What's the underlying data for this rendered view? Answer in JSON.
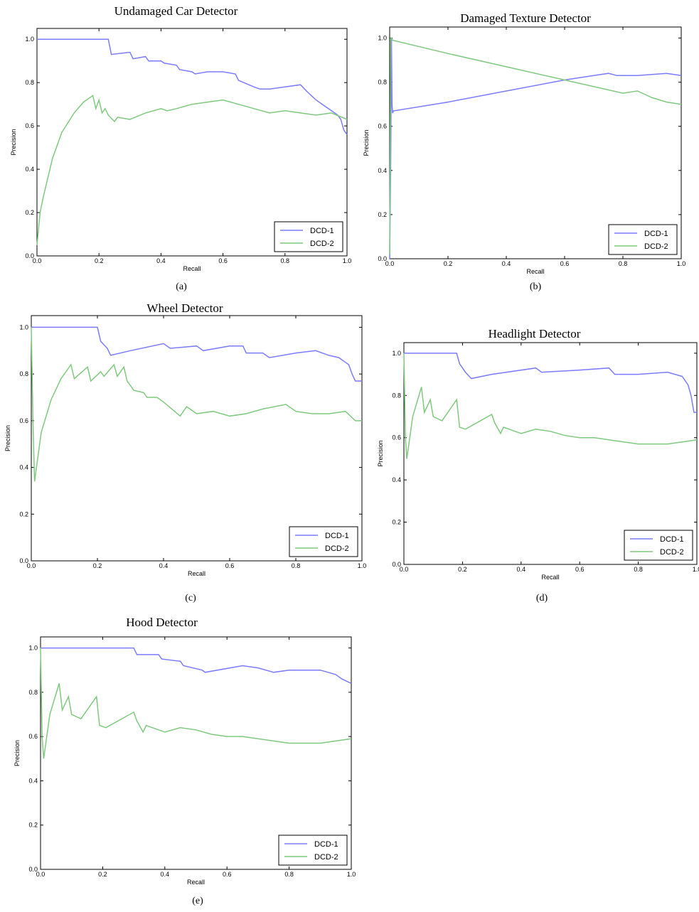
{
  "figures": [
    {
      "title": "Undamaged Car Detector",
      "caption": "(a)"
    },
    {
      "title": "Damaged Texture Detector",
      "caption": "(b)"
    },
    {
      "title": "Wheel Detector",
      "caption": "(c)"
    },
    {
      "title": "Headlight Detector",
      "caption": "(d)"
    },
    {
      "title": "Hood Detector",
      "caption": "(e)"
    }
  ],
  "colors": {
    "DCD-1": "#7b7bff",
    "DCD-2": "#7fc97f",
    "axes": "#000000"
  },
  "chart_data": [
    {
      "type": "line",
      "title": "Undamaged Car Detector",
      "xlabel": "Recall",
      "ylabel": "Precision",
      "xlim": [
        0,
        1
      ],
      "ylim": [
        0,
        1.05
      ],
      "xticks": [
        "0.0",
        "0.2",
        "0.4",
        "0.6",
        "0.8",
        "1.0"
      ],
      "yticks": [
        "0.0",
        "0.2",
        "0.4",
        "0.6",
        "0.8",
        "1.0"
      ],
      "legend": "lower-right",
      "series": [
        {
          "name": "DCD-1",
          "color": "#7b7bff",
          "x": [
            0,
            0.23,
            0.24,
            0.3,
            0.31,
            0.35,
            0.36,
            0.4,
            0.41,
            0.45,
            0.46,
            0.5,
            0.51,
            0.55,
            0.6,
            0.64,
            0.65,
            0.7,
            0.72,
            0.75,
            0.8,
            0.85,
            0.87,
            0.9,
            0.92,
            0.95,
            0.97,
            0.98,
            0.99,
            1.0
          ],
          "y": [
            1.0,
            1.0,
            0.93,
            0.94,
            0.91,
            0.92,
            0.9,
            0.9,
            0.89,
            0.88,
            0.86,
            0.85,
            0.84,
            0.85,
            0.85,
            0.84,
            0.81,
            0.78,
            0.77,
            0.77,
            0.78,
            0.79,
            0.76,
            0.72,
            0.7,
            0.67,
            0.65,
            0.63,
            0.58,
            0.56
          ]
        },
        {
          "name": "DCD-2",
          "color": "#7fc97f",
          "x": [
            0,
            0.01,
            0.02,
            0.03,
            0.05,
            0.08,
            0.12,
            0.15,
            0.18,
            0.19,
            0.2,
            0.21,
            0.22,
            0.23,
            0.25,
            0.26,
            0.3,
            0.35,
            0.4,
            0.42,
            0.45,
            0.5,
            0.55,
            0.6,
            0.65,
            0.7,
            0.75,
            0.8,
            0.85,
            0.9,
            0.95,
            1.0
          ],
          "y": [
            0.05,
            0.2,
            0.27,
            0.33,
            0.45,
            0.57,
            0.66,
            0.71,
            0.74,
            0.68,
            0.72,
            0.66,
            0.68,
            0.65,
            0.62,
            0.64,
            0.63,
            0.66,
            0.68,
            0.67,
            0.68,
            0.7,
            0.71,
            0.72,
            0.7,
            0.68,
            0.66,
            0.67,
            0.66,
            0.65,
            0.66,
            0.63
          ]
        }
      ]
    },
    {
      "type": "line",
      "title": "Damaged Texture Detector",
      "xlabel": "Recall",
      "ylabel": "Precision",
      "xlim": [
        0,
        1
      ],
      "ylim": [
        0,
        1.05
      ],
      "xticks": [
        "0.0",
        "0.2",
        "0.4",
        "0.6",
        "0.8",
        "1.0"
      ],
      "yticks": [
        "0.0",
        "0.2",
        "0.4",
        "0.6",
        "0.8",
        "1.0"
      ],
      "legend": "lower-right",
      "series": [
        {
          "name": "DCD-1",
          "color": "#7b7bff",
          "x": [
            0,
            0.004,
            0.006,
            0.008,
            0.01,
            0.013,
            0.2,
            0.4,
            0.6,
            0.7,
            0.75,
            0.78,
            0.85,
            0.95,
            1.0
          ],
          "y": [
            0.0,
            0.5,
            1.0,
            0.7,
            0.66,
            0.67,
            0.71,
            0.76,
            0.81,
            0.83,
            0.84,
            0.83,
            0.83,
            0.84,
            0.83
          ]
        },
        {
          "name": "DCD-2",
          "color": "#7fc97f",
          "x": [
            0,
            0.004,
            0.006,
            0.01,
            0.2,
            0.4,
            0.6,
            0.8,
            0.85,
            0.9,
            0.95,
            1.0
          ],
          "y": [
            0.02,
            1.0,
            1.0,
            0.99,
            0.93,
            0.87,
            0.81,
            0.75,
            0.76,
            0.73,
            0.71,
            0.7
          ]
        }
      ]
    },
    {
      "type": "line",
      "title": "Wheel Detector",
      "xlabel": "Recall",
      "ylabel": "Precision",
      "xlim": [
        0,
        1
      ],
      "ylim": [
        0,
        1.05
      ],
      "xticks": [
        "0.0",
        "0.2",
        "0.4",
        "0.6",
        "0.8",
        "1.0"
      ],
      "yticks": [
        "0.0",
        "0.2",
        "0.4",
        "0.6",
        "0.8",
        "1.0"
      ],
      "legend": "lower-right",
      "series": [
        {
          "name": "DCD-1",
          "color": "#7b7bff",
          "x": [
            0,
            0.2,
            0.21,
            0.23,
            0.24,
            0.3,
            0.4,
            0.42,
            0.5,
            0.52,
            0.6,
            0.64,
            0.65,
            0.7,
            0.72,
            0.8,
            0.86,
            0.9,
            0.93,
            0.95,
            0.96,
            0.97,
            0.98,
            1.0
          ],
          "y": [
            1.0,
            1.0,
            0.94,
            0.91,
            0.88,
            0.9,
            0.93,
            0.91,
            0.92,
            0.9,
            0.92,
            0.92,
            0.89,
            0.89,
            0.87,
            0.89,
            0.9,
            0.88,
            0.87,
            0.85,
            0.84,
            0.8,
            0.77,
            0.77
          ]
        },
        {
          "name": "DCD-2",
          "color": "#7fc97f",
          "x": [
            0,
            0.005,
            0.01,
            0.03,
            0.06,
            0.09,
            0.12,
            0.13,
            0.17,
            0.18,
            0.21,
            0.22,
            0.25,
            0.26,
            0.28,
            0.29,
            0.31,
            0.34,
            0.35,
            0.38,
            0.4,
            0.45,
            0.47,
            0.5,
            0.55,
            0.6,
            0.65,
            0.7,
            0.77,
            0.8,
            0.85,
            0.9,
            0.95,
            0.98,
            1.0
          ],
          "y": [
            1.0,
            0.6,
            0.34,
            0.55,
            0.69,
            0.78,
            0.84,
            0.78,
            0.83,
            0.77,
            0.81,
            0.79,
            0.84,
            0.79,
            0.83,
            0.77,
            0.73,
            0.72,
            0.7,
            0.7,
            0.68,
            0.62,
            0.66,
            0.63,
            0.64,
            0.62,
            0.63,
            0.65,
            0.67,
            0.64,
            0.63,
            0.63,
            0.64,
            0.6,
            0.6
          ]
        }
      ]
    },
    {
      "type": "line",
      "title": "Headlight Detector",
      "xlabel": "Recall",
      "ylabel": "Precision",
      "xlim": [
        0,
        1
      ],
      "ylim": [
        0,
        1.05
      ],
      "xticks": [
        "0.0",
        "0.2",
        "0.4",
        "0.6",
        "0.8",
        "1.0"
      ],
      "yticks": [
        "0.0",
        "0.2",
        "0.4",
        "0.6",
        "0.8",
        "1.0"
      ],
      "legend": "lower-right",
      "series": [
        {
          "name": "DCD-1",
          "color": "#7b7bff",
          "x": [
            0,
            0.18,
            0.19,
            0.21,
            0.23,
            0.3,
            0.45,
            0.47,
            0.6,
            0.7,
            0.72,
            0.8,
            0.9,
            0.95,
            0.97,
            0.98,
            0.99,
            1.0
          ],
          "y": [
            1.0,
            1.0,
            0.95,
            0.91,
            0.88,
            0.9,
            0.93,
            0.91,
            0.92,
            0.93,
            0.9,
            0.9,
            0.91,
            0.89,
            0.85,
            0.8,
            0.72,
            0.72
          ]
        },
        {
          "name": "DCD-2",
          "color": "#7fc97f",
          "x": [
            0,
            0.005,
            0.01,
            0.03,
            0.06,
            0.07,
            0.09,
            0.1,
            0.13,
            0.18,
            0.19,
            0.21,
            0.3,
            0.31,
            0.33,
            0.34,
            0.4,
            0.45,
            0.5,
            0.55,
            0.6,
            0.65,
            0.7,
            0.75,
            0.8,
            0.85,
            0.9,
            0.95,
            1.0
          ],
          "y": [
            1.0,
            0.6,
            0.5,
            0.7,
            0.84,
            0.72,
            0.78,
            0.7,
            0.68,
            0.78,
            0.65,
            0.64,
            0.71,
            0.67,
            0.62,
            0.65,
            0.62,
            0.64,
            0.63,
            0.61,
            0.6,
            0.6,
            0.59,
            0.58,
            0.57,
            0.57,
            0.57,
            0.58,
            0.59
          ]
        }
      ]
    },
    {
      "type": "line",
      "title": "Hood Detector",
      "xlabel": "Recall",
      "ylabel": "Precision",
      "xlim": [
        0,
        1
      ],
      "ylim": [
        0,
        1.05
      ],
      "xticks": [
        "0.0",
        "0.2",
        "0.4",
        "0.6",
        "0.8",
        "1.0"
      ],
      "yticks": [
        "0.0",
        "0.2",
        "0.4",
        "0.6",
        "0.8",
        "1.0"
      ],
      "legend": "lower-right",
      "series": [
        {
          "name": "DCD-1",
          "color": "#7b7bff",
          "x": [
            0,
            0.3,
            0.31,
            0.38,
            0.39,
            0.45,
            0.46,
            0.52,
            0.53,
            0.65,
            0.7,
            0.75,
            0.8,
            0.9,
            0.95,
            0.97,
            1.0
          ],
          "y": [
            1.0,
            1.0,
            0.97,
            0.97,
            0.95,
            0.94,
            0.92,
            0.9,
            0.89,
            0.92,
            0.91,
            0.89,
            0.9,
            0.9,
            0.88,
            0.86,
            0.84
          ]
        },
        {
          "name": "DCD-2",
          "color": "#7fc97f",
          "x": [
            0,
            0.005,
            0.01,
            0.03,
            0.06,
            0.07,
            0.09,
            0.1,
            0.13,
            0.18,
            0.19,
            0.21,
            0.3,
            0.31,
            0.33,
            0.34,
            0.4,
            0.45,
            0.5,
            0.55,
            0.6,
            0.65,
            0.7,
            0.75,
            0.8,
            0.85,
            0.9,
            0.95,
            1.0
          ],
          "y": [
            1.0,
            0.6,
            0.5,
            0.7,
            0.84,
            0.72,
            0.78,
            0.7,
            0.68,
            0.78,
            0.65,
            0.64,
            0.71,
            0.67,
            0.62,
            0.65,
            0.62,
            0.64,
            0.63,
            0.61,
            0.6,
            0.6,
            0.59,
            0.58,
            0.57,
            0.57,
            0.57,
            0.58,
            0.59
          ]
        }
      ]
    }
  ]
}
